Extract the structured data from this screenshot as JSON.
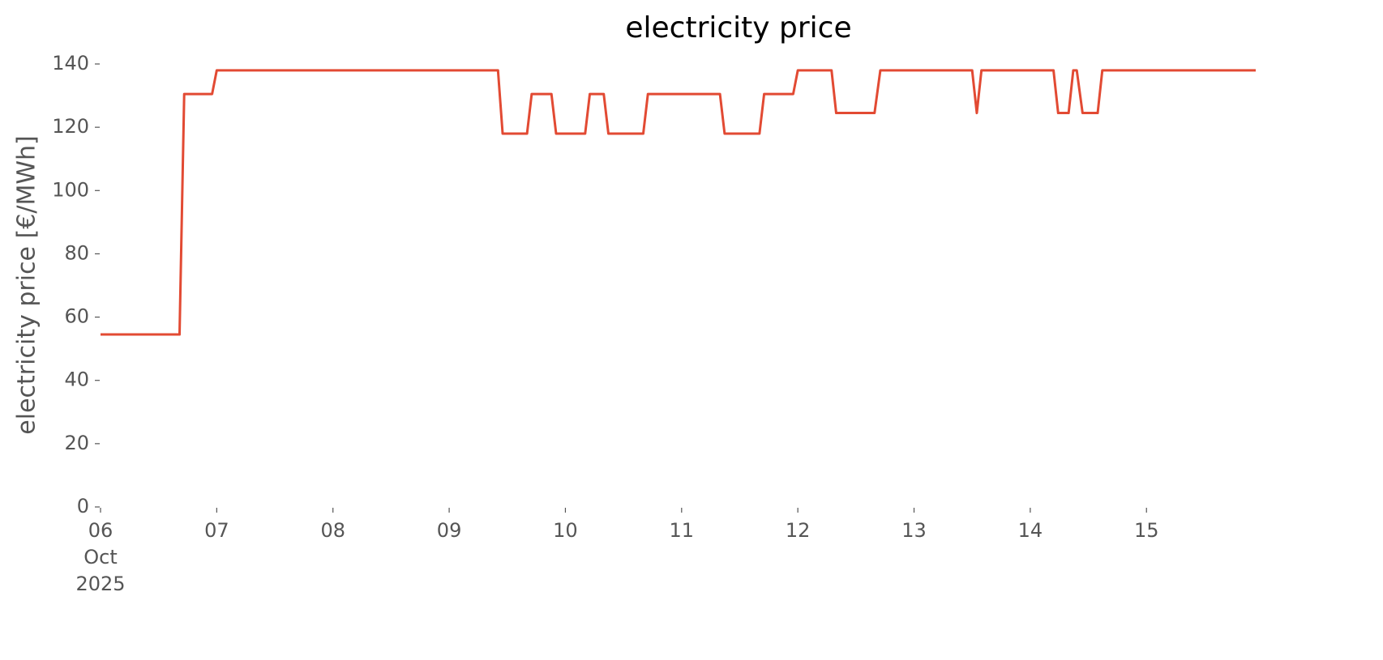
{
  "chart_data": {
    "type": "line",
    "title": "electricity price",
    "y_label": "electricity price [€/MWh]",
    "x": [
      6,
      6.68,
      6.72,
      6.96,
      7.0,
      9.42,
      9.46,
      9.67,
      9.71,
      9.88,
      9.92,
      10.17,
      10.21,
      10.33,
      10.37,
      10.67,
      10.71,
      11.33,
      11.37,
      11.67,
      11.71,
      11.96,
      12.0,
      12.29,
      12.33,
      12.66,
      12.71,
      13.5,
      13.54,
      13.58,
      14.2,
      14.24,
      14.33,
      14.37,
      14.4,
      14.45,
      14.58,
      14.62,
      15.94
    ],
    "series": [
      {
        "name": "electricity price",
        "color": "#e24a33",
        "values": [
          54.5,
          54.5,
          130.5,
          130.5,
          138,
          138,
          118,
          118,
          130.5,
          130.5,
          118,
          118,
          130.5,
          130.5,
          118,
          118,
          130.5,
          130.5,
          118,
          118,
          130.5,
          130.5,
          138,
          138,
          124.5,
          124.5,
          138,
          138,
          124.5,
          138,
          138,
          124.5,
          124.5,
          138,
          138,
          124.5,
          124.5,
          138,
          138
        ]
      }
    ],
    "xlim": [
      6,
      15.94
    ],
    "xticks": [
      {
        "value": 6,
        "label": "06 Oct 2025"
      },
      {
        "value": 7,
        "label": "07"
      },
      {
        "value": 8,
        "label": "08"
      },
      {
        "value": 9,
        "label": "09"
      },
      {
        "value": 10,
        "label": "10"
      },
      {
        "value": 11,
        "label": "11"
      },
      {
        "value": 12,
        "label": "12"
      },
      {
        "value": 13,
        "label": "13"
      },
      {
        "value": 14,
        "label": "14"
      },
      {
        "value": 15,
        "label": "15"
      }
    ],
    "ylim": [
      0,
      140
    ],
    "yticks": [
      0,
      20,
      40,
      60,
      80,
      100,
      120,
      140
    ],
    "grid": false
  }
}
